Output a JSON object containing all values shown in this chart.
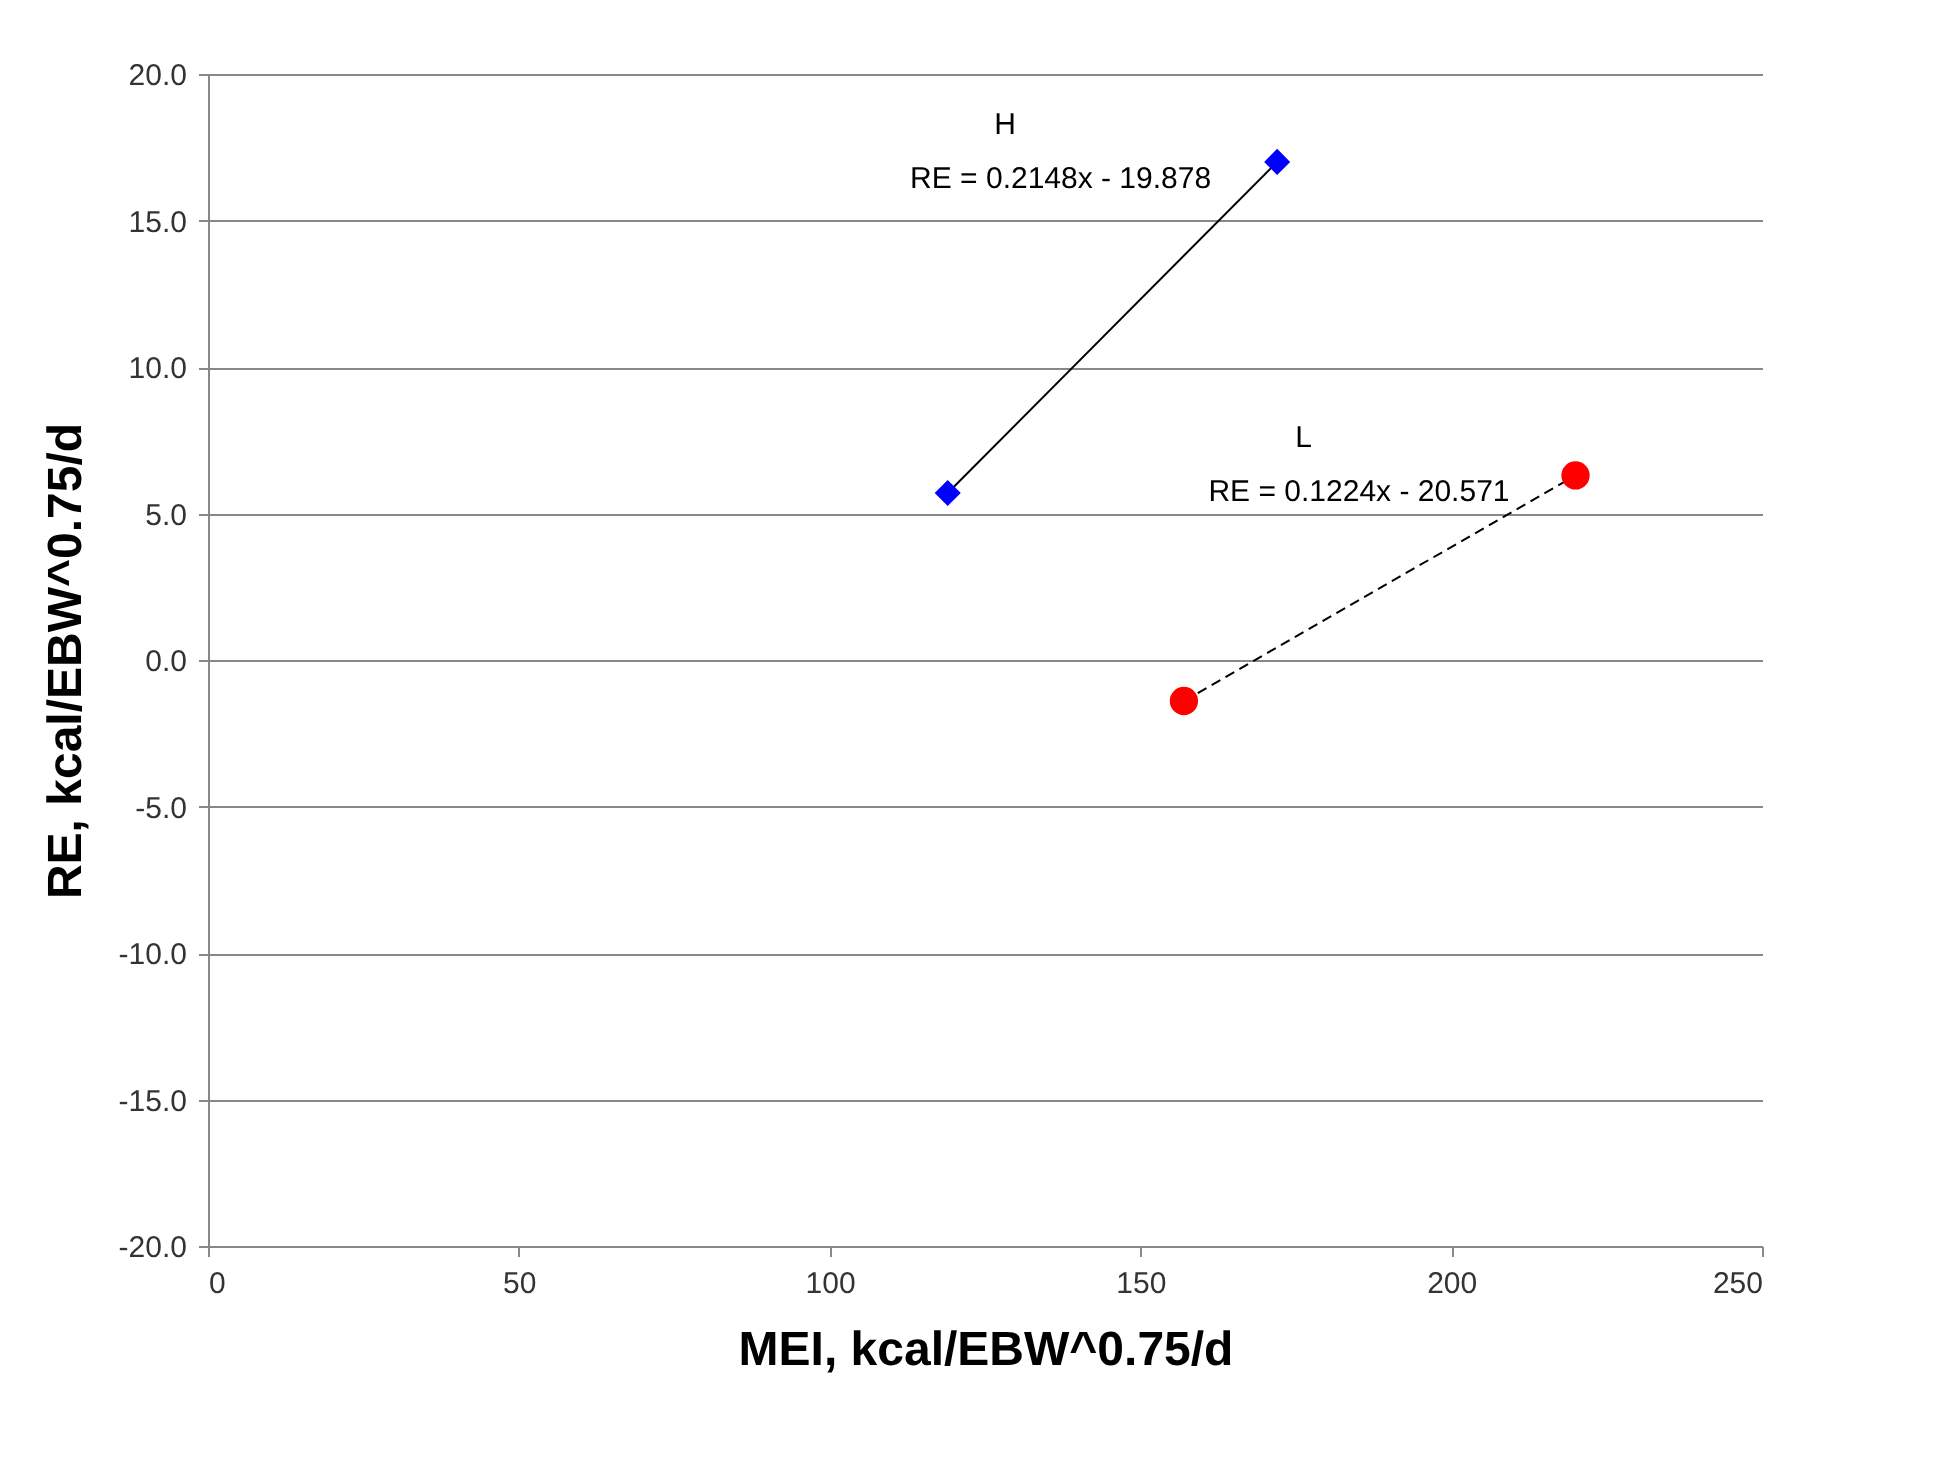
{
  "chart_data": {
    "type": "scatter",
    "xlabel": "MEI, kcal/EBW^0.75/d",
    "ylabel": "RE, kcal/EBW^0.75/d",
    "xlim": [
      0,
      250
    ],
    "xticks": [
      0,
      50,
      100,
      150,
      200,
      250
    ],
    "ylim": [
      -20,
      20
    ],
    "yticks": [
      {
        "value": -20,
        "label": "-20.0"
      },
      {
        "value": -15,
        "label": "-15.0"
      },
      {
        "value": -10,
        "label": "-10.0"
      },
      {
        "value": -5,
        "label": "-5.0"
      },
      {
        "value": 0,
        "label": "0.0"
      },
      {
        "value": 5,
        "label": "5.0"
      },
      {
        "value": 10,
        "label": "10.0"
      },
      {
        "value": 15,
        "label": "15.0"
      },
      {
        "value": 20,
        "label": "20.0"
      }
    ],
    "grid": "y",
    "series": [
      {
        "type": "line",
        "color": "#000000",
        "line_style": "solid",
        "marker": "none",
        "x": [
          119,
          172
        ],
        "values": [
          5.7,
          17.0
        ]
      },
      {
        "type": "line",
        "color": "#000000",
        "line_style": "dashed",
        "marker": "none",
        "x": [
          157,
          220
        ],
        "values": [
          -1.4,
          6.3
        ]
      },
      {
        "color": "#0000ff",
        "marker": "diamond",
        "x": [
          119,
          172
        ],
        "values": [
          5.7,
          17.0
        ]
      },
      {
        "color": "#ff0000",
        "marker": "circle",
        "x": [
          157,
          220
        ],
        "values": [
          -1.4,
          6.3
        ]
      }
    ],
    "annotations": [
      "H",
      "RE = 0.2148x - 19.878",
      "L",
      "RE = 0.1224x - 20.571"
    ]
  }
}
